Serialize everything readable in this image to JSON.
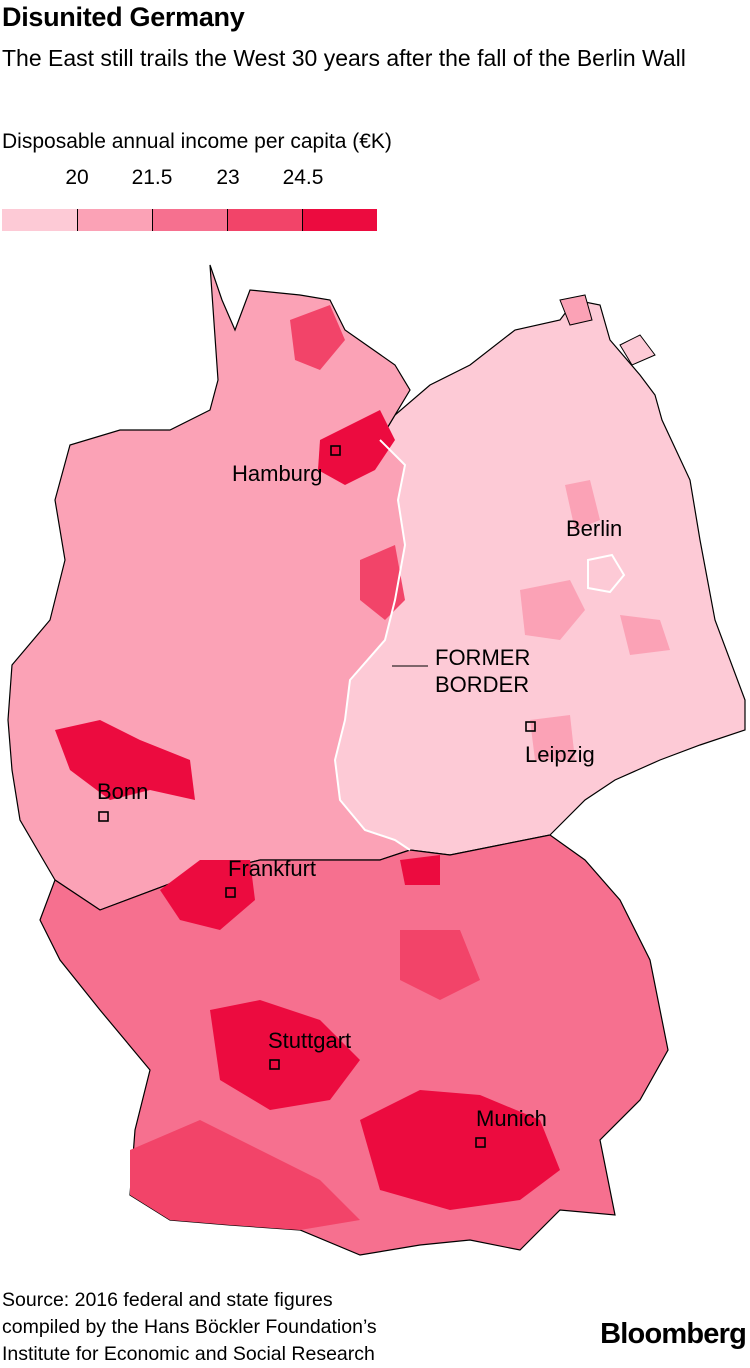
{
  "title": "Disunited Germany",
  "subtitle": "The East still trails the West 30 years after the fall of the Berlin Wall",
  "legend": {
    "title": "Disposable annual income per capita (€K)",
    "breaks": [
      "20",
      "21.5",
      "23",
      "24.5"
    ],
    "colors": [
      "#fdcad6",
      "#fba2b6",
      "#f6708f",
      "#f24469",
      "#ec0b3f"
    ]
  },
  "map": {
    "annotation_line1": "FORMER",
    "annotation_line2": "BORDER",
    "region_colors": {
      "east": "#fdcad6",
      "west_base": "#fba2b6",
      "south_base": "#f6708f",
      "hot": "#ec0b3f",
      "mid": "#f24469"
    },
    "cities": [
      {
        "name": "Hamburg"
      },
      {
        "name": "Berlin"
      },
      {
        "name": "Leipzig"
      },
      {
        "name": "Bonn"
      },
      {
        "name": "Frankfurt"
      },
      {
        "name": "Stuttgart"
      },
      {
        "name": "Munich"
      }
    ]
  },
  "source_line1": "Source: 2016 federal and state figures",
  "source_line2": "compiled by the Hans Böckler Foundation’s",
  "source_line3": "Institute for Economic and Social Research",
  "brand": "Bloomberg"
}
